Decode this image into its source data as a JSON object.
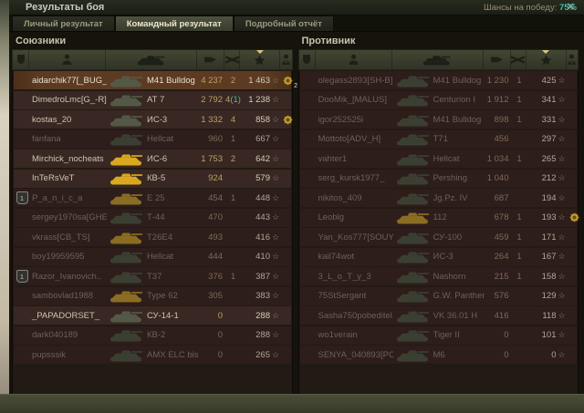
{
  "window": {
    "title": "Результаты боя",
    "close_icon": "✕"
  },
  "tabs": [
    {
      "label": "Личный результат",
      "active": false
    },
    {
      "label": "Командный результат",
      "active": true
    },
    {
      "label": "Подробный отчёт",
      "active": false
    }
  ],
  "win_chance": {
    "label": "Шансы на победу:",
    "value": "75%"
  },
  "columns": {
    "icons": [
      "platoon",
      "player",
      "vehicle",
      "damage-dealt",
      "vehicles-destroyed",
      "experience",
      "achievements"
    ],
    "sorted_by": "experience",
    "xp_star_glyph": "☆"
  },
  "colors": {
    "win_chance_value": "#3fbdae",
    "teamkill_number": "#3fbdae",
    "self_row_highlight": "#5c3b22",
    "premium_tank": "#d9a81f",
    "regular_tank": "#545947",
    "dead_regular_tank": "#3b3f31",
    "dead_premium_tank": "#8a6d22",
    "medal_gold": "#caa136",
    "damage_number": "#bda065"
  },
  "teams": [
    {
      "name": "Союзники",
      "rows": [
        {
          "player": "aidarchik77[_BUG_]",
          "vehicle": "M41 Bulldog",
          "damage": "4 237",
          "frags": "2",
          "teamkills": "",
          "xp": "1 463",
          "dead": false,
          "self": true,
          "premium": false,
          "squad": "",
          "medal": true,
          "medal_count": "2"
        },
        {
          "player": "DimedroLmc[G_-R]",
          "vehicle": "АТ 7",
          "damage": "2 792",
          "frags": "4",
          "teamkills": "1",
          "xp": "1 238",
          "dead": false,
          "self": false,
          "premium": false,
          "squad": "",
          "medal": false,
          "medal_count": ""
        },
        {
          "player": "kostas_20",
          "vehicle": "ИС-3",
          "damage": "1 332",
          "frags": "4",
          "teamkills": "",
          "xp": "858",
          "dead": false,
          "self": false,
          "premium": false,
          "squad": "",
          "medal": true,
          "medal_count": ""
        },
        {
          "player": "fanfana",
          "vehicle": "Hellcat",
          "damage": "960",
          "frags": "1",
          "teamkills": "",
          "xp": "667",
          "dead": true,
          "self": false,
          "premium": false,
          "squad": "",
          "medal": false,
          "medal_count": ""
        },
        {
          "player": "Mirchick_nocheats",
          "vehicle": "ИС-6",
          "damage": "1 753",
          "frags": "2",
          "teamkills": "",
          "xp": "642",
          "dead": false,
          "self": false,
          "premium": true,
          "squad": "",
          "medal": false,
          "medal_count": ""
        },
        {
          "player": "InTeRsVeT",
          "vehicle": "КВ-5",
          "damage": "924",
          "frags": "",
          "teamkills": "",
          "xp": "579",
          "dead": false,
          "self": false,
          "premium": true,
          "squad": "",
          "medal": false,
          "medal_count": ""
        },
        {
          "player": "P_a_n_i_c_a",
          "vehicle": "E 25",
          "damage": "454",
          "frags": "1",
          "teamkills": "",
          "xp": "448",
          "dead": true,
          "self": false,
          "premium": true,
          "squad": "1",
          "medal": false,
          "medal_count": ""
        },
        {
          "player": "sergey1970sa[GHEM]",
          "vehicle": "Т-44",
          "damage": "470",
          "frags": "",
          "teamkills": "",
          "xp": "443",
          "dead": true,
          "self": false,
          "premium": false,
          "squad": "",
          "medal": false,
          "medal_count": ""
        },
        {
          "player": "vkrass[CB_TS]",
          "vehicle": "T26E4",
          "damage": "493",
          "frags": "",
          "teamkills": "",
          "xp": "416",
          "dead": true,
          "self": false,
          "premium": true,
          "squad": "",
          "medal": false,
          "medal_count": ""
        },
        {
          "player": "boy19959595",
          "vehicle": "Hellcat",
          "damage": "444",
          "frags": "",
          "teamkills": "",
          "xp": "410",
          "dead": true,
          "self": false,
          "premium": false,
          "squad": "",
          "medal": false,
          "medal_count": ""
        },
        {
          "player": "Razor_Ivanovich..",
          "vehicle": "T37",
          "damage": "376",
          "frags": "1",
          "teamkills": "",
          "xp": "387",
          "dead": true,
          "self": false,
          "premium": false,
          "squad": "1",
          "medal": false,
          "medal_count": ""
        },
        {
          "player": "sambovlad1988",
          "vehicle": "Type 62",
          "damage": "305",
          "frags": "",
          "teamkills": "",
          "xp": "383",
          "dead": true,
          "self": false,
          "premium": true,
          "squad": "",
          "medal": false,
          "medal_count": ""
        },
        {
          "player": "_PAPADORSET_",
          "vehicle": "СУ-14-1",
          "damage": "0",
          "frags": "",
          "teamkills": "",
          "xp": "288",
          "dead": false,
          "self": false,
          "premium": false,
          "squad": "",
          "medal": false,
          "medal_count": ""
        },
        {
          "player": "dark040189",
          "vehicle": "КВ-2",
          "damage": "0",
          "frags": "",
          "teamkills": "",
          "xp": "288",
          "dead": true,
          "self": false,
          "premium": false,
          "squad": "",
          "medal": false,
          "medal_count": ""
        },
        {
          "player": "pupsssik",
          "vehicle": "AMX ELC bis",
          "damage": "0",
          "frags": "",
          "teamkills": "",
          "xp": "265",
          "dead": true,
          "self": false,
          "premium": false,
          "squad": "",
          "medal": false,
          "medal_count": ""
        }
      ]
    },
    {
      "name": "Противник",
      "rows": [
        {
          "player": "olegass2893[SH-B]",
          "vehicle": "M41 Bulldog",
          "damage": "1 230",
          "frags": "1",
          "teamkills": "",
          "xp": "425",
          "dead": true,
          "self": false,
          "premium": false,
          "squad": "",
          "medal": false,
          "medal_count": ""
        },
        {
          "player": "DooMik_[MALUS]",
          "vehicle": "Centurion I",
          "damage": "1 912",
          "frags": "1",
          "teamkills": "",
          "xp": "341",
          "dead": true,
          "self": false,
          "premium": false,
          "squad": "",
          "medal": false,
          "medal_count": ""
        },
        {
          "player": "igor252525i",
          "vehicle": "M41 Bulldog",
          "damage": "898",
          "frags": "1",
          "teamkills": "",
          "xp": "331",
          "dead": true,
          "self": false,
          "premium": false,
          "squad": "",
          "medal": false,
          "medal_count": ""
        },
        {
          "player": "Mottoto[ADV_H]",
          "vehicle": "T71",
          "damage": "456",
          "frags": "",
          "teamkills": "",
          "xp": "297",
          "dead": true,
          "self": false,
          "premium": false,
          "squad": "",
          "medal": false,
          "medal_count": ""
        },
        {
          "player": "vahter1",
          "vehicle": "Hellcat",
          "damage": "1 034",
          "frags": "1",
          "teamkills": "",
          "xp": "265",
          "dead": true,
          "self": false,
          "premium": false,
          "squad": "",
          "medal": false,
          "medal_count": ""
        },
        {
          "player": "serg_kursk1977_",
          "vehicle": "Pershing",
          "damage": "1 040",
          "frags": "",
          "teamkills": "",
          "xp": "212",
          "dead": true,
          "self": false,
          "premium": false,
          "squad": "",
          "medal": false,
          "medal_count": ""
        },
        {
          "player": "nikitos_409",
          "vehicle": "Jg.Pz. IV",
          "damage": "687",
          "frags": "",
          "teamkills": "",
          "xp": "194",
          "dead": true,
          "self": false,
          "premium": false,
          "squad": "",
          "medal": false,
          "medal_count": ""
        },
        {
          "player": "Leoblg",
          "vehicle": "112",
          "damage": "678",
          "frags": "1",
          "teamkills": "",
          "xp": "193",
          "dead": true,
          "self": false,
          "premium": true,
          "squad": "",
          "medal": true,
          "medal_count": ""
        },
        {
          "player": "Yan_Kos777[SOUYZ]",
          "vehicle": "СУ-100",
          "damage": "459",
          "frags": "1",
          "teamkills": "",
          "xp": "171",
          "dead": true,
          "self": false,
          "premium": false,
          "squad": "",
          "medal": false,
          "medal_count": ""
        },
        {
          "player": "kail74wot",
          "vehicle": "ИС-3",
          "damage": "264",
          "frags": "1",
          "teamkills": "",
          "xp": "167",
          "dead": true,
          "self": false,
          "premium": false,
          "squad": "",
          "medal": false,
          "medal_count": ""
        },
        {
          "player": "3_L_o_T_y_3",
          "vehicle": "Nashorn",
          "damage": "215",
          "frags": "1",
          "teamkills": "",
          "xp": "158",
          "dead": true,
          "self": false,
          "premium": false,
          "squad": "",
          "medal": false,
          "medal_count": ""
        },
        {
          "player": "75StSergant",
          "vehicle": "G.W. Panther",
          "damage": "576",
          "frags": "",
          "teamkills": "",
          "xp": "129",
          "dead": true,
          "self": false,
          "premium": false,
          "squad": "",
          "medal": false,
          "medal_count": ""
        },
        {
          "player": "Sasha750pobeditel..",
          "vehicle": "VK 36.01 H",
          "damage": "416",
          "frags": "",
          "teamkills": "",
          "xp": "118",
          "dead": true,
          "self": false,
          "premium": false,
          "squad": "",
          "medal": false,
          "medal_count": ""
        },
        {
          "player": "wo1verain",
          "vehicle": "Tiger II",
          "damage": "0",
          "frags": "",
          "teamkills": "",
          "xp": "101",
          "dead": true,
          "self": false,
          "premium": false,
          "squad": "",
          "medal": false,
          "medal_count": ""
        },
        {
          "player": "SENYA_040893[PCY]",
          "vehicle": "M6",
          "damage": "0",
          "frags": "",
          "teamkills": "",
          "xp": "0",
          "dead": true,
          "self": false,
          "premium": false,
          "squad": "",
          "medal": false,
          "medal_count": ""
        }
      ]
    }
  ]
}
